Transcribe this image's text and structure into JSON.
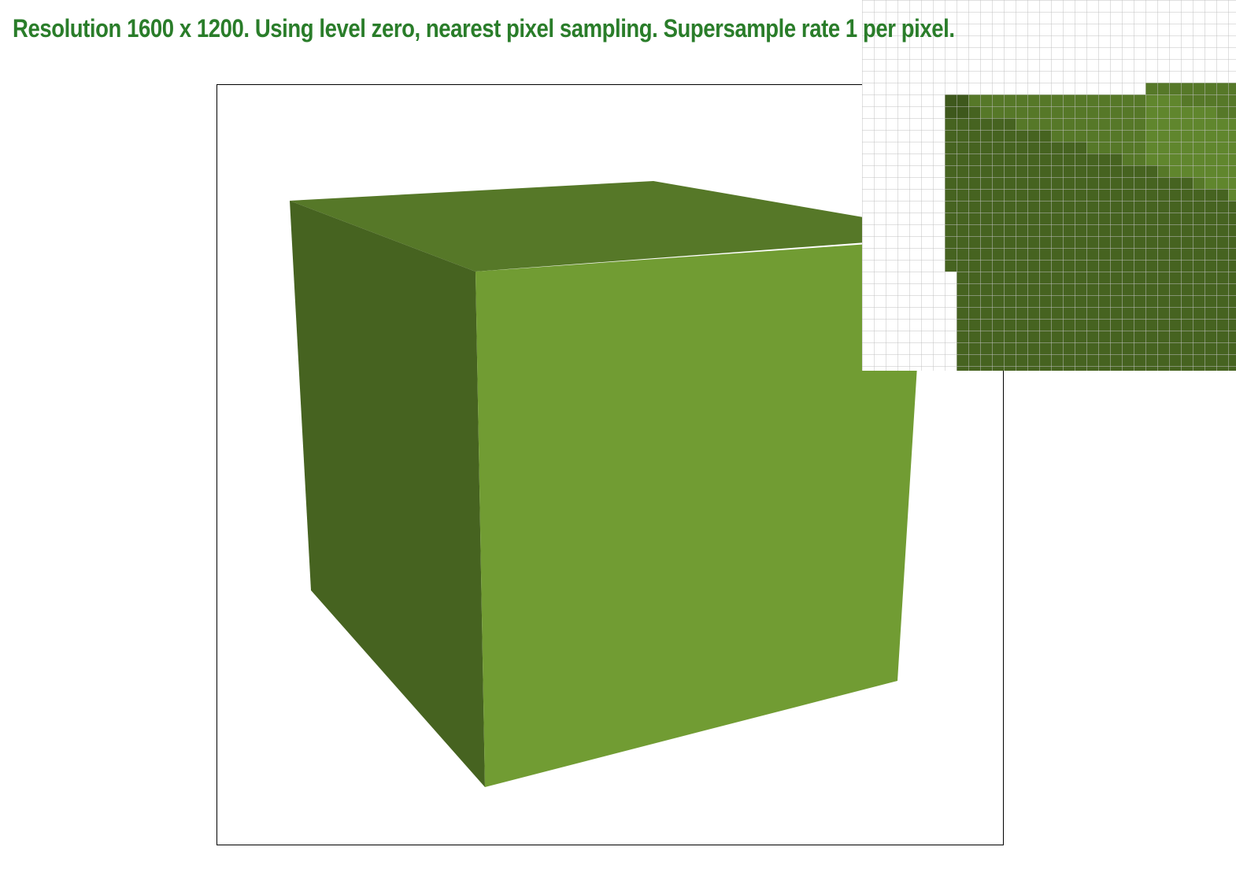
{
  "status": {
    "text": "Resolution 1600 x 1200. Using level zero, nearest pixel sampling. Supersample rate 1 per pixel.",
    "color": "#2a7d2a"
  },
  "cube": {
    "colors": {
      "top": "#567828",
      "left": "#466320",
      "front": "#719c33"
    }
  },
  "zoom_view": {
    "grid_color": "#c0c0c0",
    "colors": {
      "left": "#466320",
      "left_dark": "#3e581c",
      "top": "#567828",
      "front": "#6a9131"
    }
  }
}
